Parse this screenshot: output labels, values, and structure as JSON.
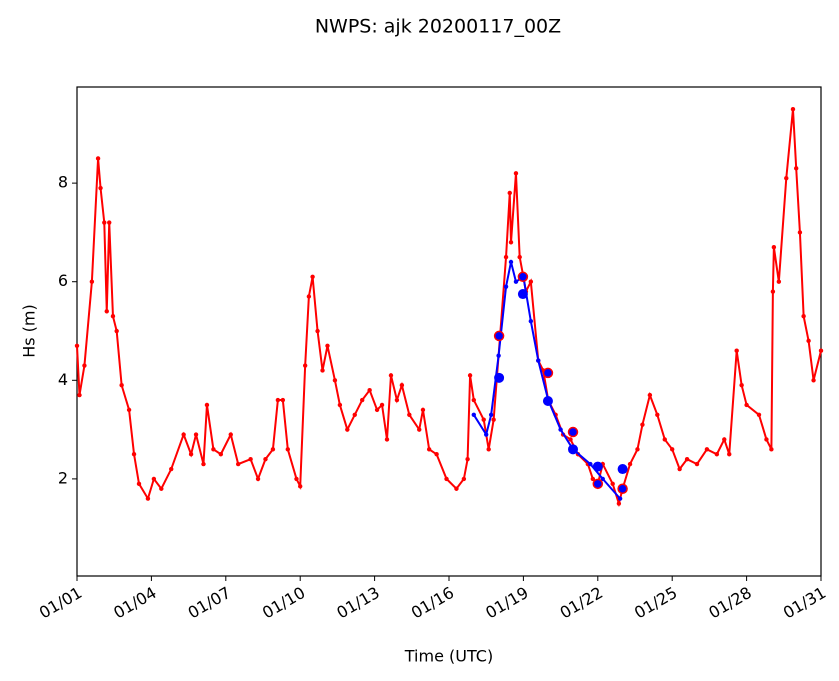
{
  "chart_data": {
    "type": "line",
    "title": "NWPS: ajk 20200117_00Z",
    "xlabel": "Time (UTC)",
    "ylabel": "Hs (m)",
    "xlim": [
      1,
      31
    ],
    "ylim": [
      0.03,
      9.95
    ],
    "xticks": [
      {
        "value": 1,
        "label": "01/01"
      },
      {
        "value": 4,
        "label": "01/04"
      },
      {
        "value": 7,
        "label": "01/07"
      },
      {
        "value": 10,
        "label": "01/10"
      },
      {
        "value": 13,
        "label": "01/13"
      },
      {
        "value": 16,
        "label": "01/16"
      },
      {
        "value": 19,
        "label": "01/19"
      },
      {
        "value": 22,
        "label": "01/22"
      },
      {
        "value": 25,
        "label": "01/25"
      },
      {
        "value": 28,
        "label": "01/28"
      },
      {
        "value": 31,
        "label": "01/31"
      }
    ],
    "yticks": [
      2,
      4,
      6,
      8
    ],
    "series": [
      {
        "color": "#ff0000",
        "line": true,
        "marker": "small",
        "x": [
          1.0,
          1.1,
          1.3,
          1.6,
          1.85,
          1.95,
          2.1,
          2.2,
          2.3,
          2.45,
          2.6,
          2.8,
          3.1,
          3.3,
          3.5,
          3.86,
          4.1,
          4.4,
          4.8,
          5.3,
          5.6,
          5.8,
          6.1,
          6.24,
          6.5,
          6.8,
          7.2,
          7.5,
          8.0,
          8.3,
          8.6,
          8.9,
          9.1,
          9.3,
          9.5,
          9.85,
          10.0,
          10.2,
          10.35,
          10.5,
          10.7,
          10.9,
          11.1,
          11.4,
          11.6,
          11.9,
          12.2,
          12.5,
          12.8,
          13.1,
          13.3,
          13.5,
          13.66,
          13.9,
          14.1,
          14.4,
          14.8,
          14.95,
          15.2,
          15.5,
          15.9,
          16.3,
          16.6,
          16.75,
          16.85,
          17.0,
          17.4,
          17.6,
          17.8,
          18.06,
          18.3,
          18.45,
          18.5,
          18.7,
          18.85,
          19.0,
          19.1,
          19.3,
          19.6,
          19.8,
          20.0,
          20.3,
          20.6,
          20.9,
          21.2,
          21.6,
          21.8,
          22.0,
          22.2,
          22.6,
          22.85,
          23.0,
          23.3,
          23.6,
          23.8,
          24.1,
          24.4,
          24.7,
          25.0,
          25.3,
          25.6,
          26.0,
          26.4,
          26.8,
          27.1,
          27.3,
          27.6,
          27.8,
          28.0,
          28.5,
          28.8,
          29.0,
          29.06,
          29.1,
          29.3,
          29.6,
          29.87,
          30.0,
          30.15,
          30.3,
          30.5,
          30.7,
          31.0
        ],
        "values": [
          4.7,
          3.7,
          4.3,
          6.0,
          8.5,
          7.9,
          7.2,
          5.4,
          7.2,
          5.3,
          5.0,
          3.9,
          3.4,
          2.5,
          1.9,
          1.6,
          2.0,
          1.8,
          2.2,
          2.9,
          2.5,
          2.9,
          2.3,
          3.5,
          2.6,
          2.5,
          2.9,
          2.3,
          2.4,
          2.0,
          2.4,
          2.6,
          3.6,
          3.6,
          2.6,
          2.0,
          1.85,
          4.3,
          5.7,
          6.1,
          5.0,
          4.2,
          4.7,
          4.0,
          3.5,
          3.0,
          3.3,
          3.6,
          3.8,
          3.4,
          3.5,
          2.8,
          4.1,
          3.6,
          3.9,
          3.3,
          3.0,
          3.4,
          2.6,
          2.5,
          2.0,
          1.8,
          2.0,
          2.4,
          4.1,
          3.6,
          3.2,
          2.6,
          3.2,
          4.9,
          6.5,
          7.8,
          6.8,
          8.2,
          6.5,
          6.1,
          5.8,
          6.0,
          4.4,
          4.2,
          3.6,
          3.3,
          2.9,
          2.8,
          2.5,
          2.3,
          2.0,
          1.9,
          2.3,
          1.9,
          1.5,
          1.8,
          2.3,
          2.6,
          3.1,
          3.7,
          3.3,
          2.8,
          2.6,
          2.2,
          2.4,
          2.3,
          2.6,
          2.5,
          2.8,
          2.5,
          4.6,
          3.9,
          3.5,
          3.3,
          2.8,
          2.6,
          5.8,
          6.7,
          6.0,
          8.1,
          9.5,
          8.3,
          7.0,
          5.3,
          4.8,
          4.0,
          4.6
        ]
      },
      {
        "color": "#0000ff",
        "line": true,
        "marker": "small",
        "x": [
          17.0,
          17.5,
          17.7,
          18.0,
          18.3,
          18.5,
          18.7,
          19.0,
          19.3,
          19.6,
          20.0,
          20.5,
          21.0,
          21.7,
          22.2,
          22.9
        ],
        "values": [
          3.3,
          2.9,
          3.3,
          4.5,
          5.9,
          6.4,
          6.0,
          6.1,
          5.2,
          4.4,
          3.6,
          3.0,
          2.6,
          2.3,
          2.0,
          1.6
        ]
      },
      {
        "color": "#0000ff",
        "line": false,
        "marker": "large",
        "x": [
          18.02,
          18.98,
          19.99,
          21.0,
          22.0,
          23.0
        ],
        "values": [
          4.05,
          5.75,
          3.58,
          2.6,
          2.25,
          2.2
        ]
      },
      {
        "color": "#ff0000",
        "fill": "#0000ff",
        "line": false,
        "marker": "ring",
        "x": [
          18.02,
          18.98,
          19.99,
          21.0,
          22.0,
          23.0
        ],
        "values": [
          4.9,
          6.1,
          4.15,
          2.95,
          1.9,
          1.8
        ]
      }
    ]
  }
}
